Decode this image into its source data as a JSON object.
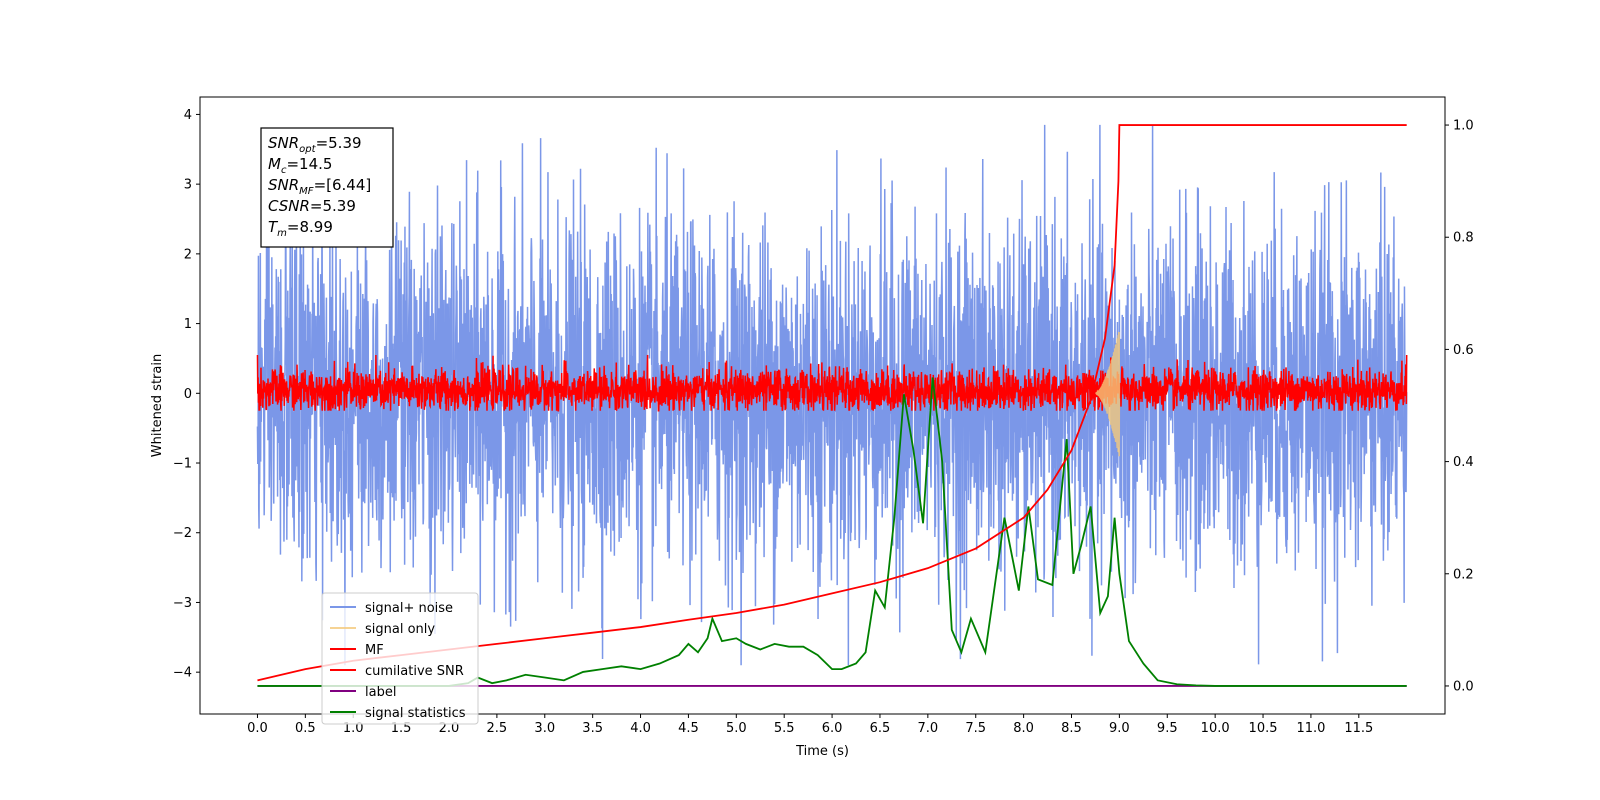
{
  "chart_data": {
    "type": "line",
    "xlabel": "Time (s)",
    "ylabel": "Whitened strain",
    "xlim": [
      -0.6,
      12.4
    ],
    "ylim": [
      -4.6,
      4.25
    ],
    "y2lim": [
      -0.05,
      1.05
    ],
    "x_ticks": [
      0.0,
      0.5,
      1.0,
      1.5,
      2.0,
      2.5,
      3.0,
      3.5,
      4.0,
      4.5,
      5.0,
      5.5,
      6.0,
      6.5,
      7.0,
      7.5,
      8.0,
      8.5,
      9.0,
      9.5,
      10.0,
      10.5,
      11.0,
      11.5
    ],
    "x_tick_labels": [
      "0.0",
      "0.5",
      "1.0",
      "1.5",
      "2.0",
      "2.5",
      "3.0",
      "3.5",
      "4.0",
      "4.5",
      "5.0",
      "5.5",
      "6.0",
      "6.5",
      "7.0",
      "7.5",
      "8.0",
      "8.5",
      "9.0",
      "9.5",
      "10.0",
      "10.5",
      "11.0",
      "11.5"
    ],
    "y_ticks": [
      -4,
      -3,
      -2,
      -1,
      0,
      1,
      2,
      3,
      4
    ],
    "y_tick_labels": [
      "−4",
      "−3",
      "−2",
      "−1",
      "0",
      "1",
      "2",
      "3",
      "4"
    ],
    "y2_ticks": [
      0.0,
      0.2,
      0.4,
      0.6,
      0.8,
      1.0
    ],
    "y2_tick_labels": [
      "0.0",
      "0.2",
      "0.4",
      "0.6",
      "0.8",
      "1.0"
    ],
    "grid": false,
    "legend_position": "lower-left",
    "annotation_lines": [
      {
        "main": "SNR",
        "sub": "opt",
        "rest": "=5.39"
      },
      {
        "main": "M",
        "sub": "c",
        "rest": "=14.5"
      },
      {
        "main": "SNR",
        "sub": "MF",
        "rest": "=[6.44]"
      },
      {
        "main": "CSNR",
        "sub": "",
        "rest": "=5.39"
      },
      {
        "main": "T",
        "sub": "m",
        "rest": "=8.99"
      }
    ],
    "series": [
      {
        "name": "signal+ noise",
        "color": "#7b97e8",
        "axis": "left",
        "style": "noise",
        "x_range": [
          0.0,
          12.0
        ],
        "envelope_min": -3.9,
        "envelope_max": 3.85,
        "typical_range": [
          -2.3,
          2.2
        ]
      },
      {
        "name": "signal only",
        "color": "#f5c97a",
        "axis": "left",
        "style": "chirp",
        "x_range": [
          8.75,
          9.0
        ],
        "peak_amplitude": 0.92
      },
      {
        "name": "MF",
        "color": "#ff0000",
        "axis": "left",
        "style": "noise",
        "x_range": [
          0.0,
          12.0
        ],
        "typical_range": [
          -0.2,
          0.45
        ]
      },
      {
        "name": "cumilative SNR",
        "color": "#ff0000",
        "axis": "right",
        "x": [
          0.0,
          0.5,
          1.0,
          1.5,
          2.0,
          2.5,
          3.0,
          3.5,
          4.0,
          4.5,
          5.0,
          5.5,
          6.0,
          6.5,
          7.0,
          7.5,
          8.0,
          8.25,
          8.5,
          8.7,
          8.85,
          8.95,
          8.99,
          9.0,
          12.0
        ],
        "values": [
          0.01,
          0.03,
          0.045,
          0.055,
          0.065,
          0.075,
          0.085,
          0.095,
          0.105,
          0.118,
          0.13,
          0.145,
          0.165,
          0.185,
          0.21,
          0.245,
          0.3,
          0.35,
          0.42,
          0.51,
          0.62,
          0.75,
          0.9,
          1.0,
          1.0
        ]
      },
      {
        "name": "label",
        "color": "#800080",
        "axis": "right",
        "x": [
          0.0,
          12.0
        ],
        "values": [
          0.0,
          0.0
        ]
      },
      {
        "name": "signal statistics",
        "color": "#008000",
        "axis": "right",
        "x": [
          0.0,
          0.25,
          0.5,
          0.75,
          1.0,
          1.25,
          1.5,
          1.75,
          2.0,
          2.2,
          2.3,
          2.45,
          2.6,
          2.8,
          3.0,
          3.2,
          3.4,
          3.6,
          3.8,
          4.0,
          4.2,
          4.4,
          4.5,
          4.6,
          4.7,
          4.75,
          4.85,
          5.0,
          5.1,
          5.25,
          5.4,
          5.55,
          5.7,
          5.85,
          6.0,
          6.1,
          6.25,
          6.35,
          6.45,
          6.55,
          6.65,
          6.75,
          6.85,
          6.95,
          7.05,
          7.15,
          7.25,
          7.35,
          7.45,
          7.6,
          7.8,
          7.95,
          8.05,
          8.15,
          8.3,
          8.45,
          8.52,
          8.6,
          8.7,
          8.8,
          8.88,
          8.95,
          9.0,
          9.1,
          9.25,
          9.4,
          9.6,
          9.8,
          10.0,
          11.0,
          12.0
        ],
        "values": [
          0.0,
          0.0,
          0.0,
          0.0,
          0.0,
          0.0,
          0.0,
          0.0,
          0.0,
          0.005,
          0.015,
          0.005,
          0.01,
          0.02,
          0.015,
          0.01,
          0.025,
          0.03,
          0.035,
          0.03,
          0.04,
          0.055,
          0.075,
          0.06,
          0.085,
          0.12,
          0.08,
          0.085,
          0.075,
          0.065,
          0.075,
          0.07,
          0.07,
          0.055,
          0.03,
          0.03,
          0.04,
          0.06,
          0.17,
          0.14,
          0.3,
          0.52,
          0.42,
          0.29,
          0.55,
          0.4,
          0.1,
          0.06,
          0.12,
          0.06,
          0.3,
          0.17,
          0.32,
          0.19,
          0.18,
          0.44,
          0.2,
          0.25,
          0.32,
          0.13,
          0.16,
          0.3,
          0.2,
          0.08,
          0.04,
          0.01,
          0.003,
          0.001,
          0.0,
          0.0,
          0.0
        ]
      }
    ]
  }
}
